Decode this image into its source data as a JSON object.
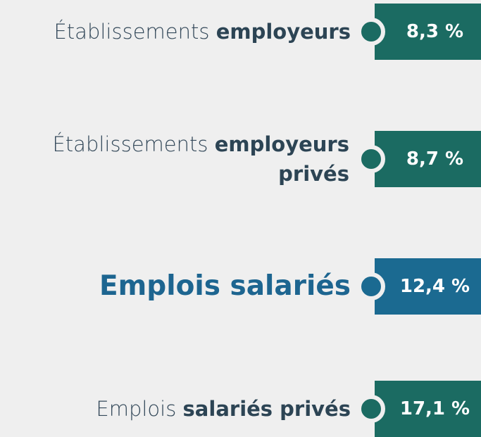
{
  "items": [
    {
      "regular": "Établissements",
      "bold": "employeurs",
      "value": "8,3 %"
    },
    {
      "regular": "Établissements",
      "bold": "employeurs",
      "bold2": "privés",
      "value": "8,7 %"
    },
    {
      "bold": "Emplois salariés",
      "value": "12,4 %"
    },
    {
      "regular": "Emplois",
      "bold": "salariés privés",
      "value": "17,1 %"
    }
  ]
}
